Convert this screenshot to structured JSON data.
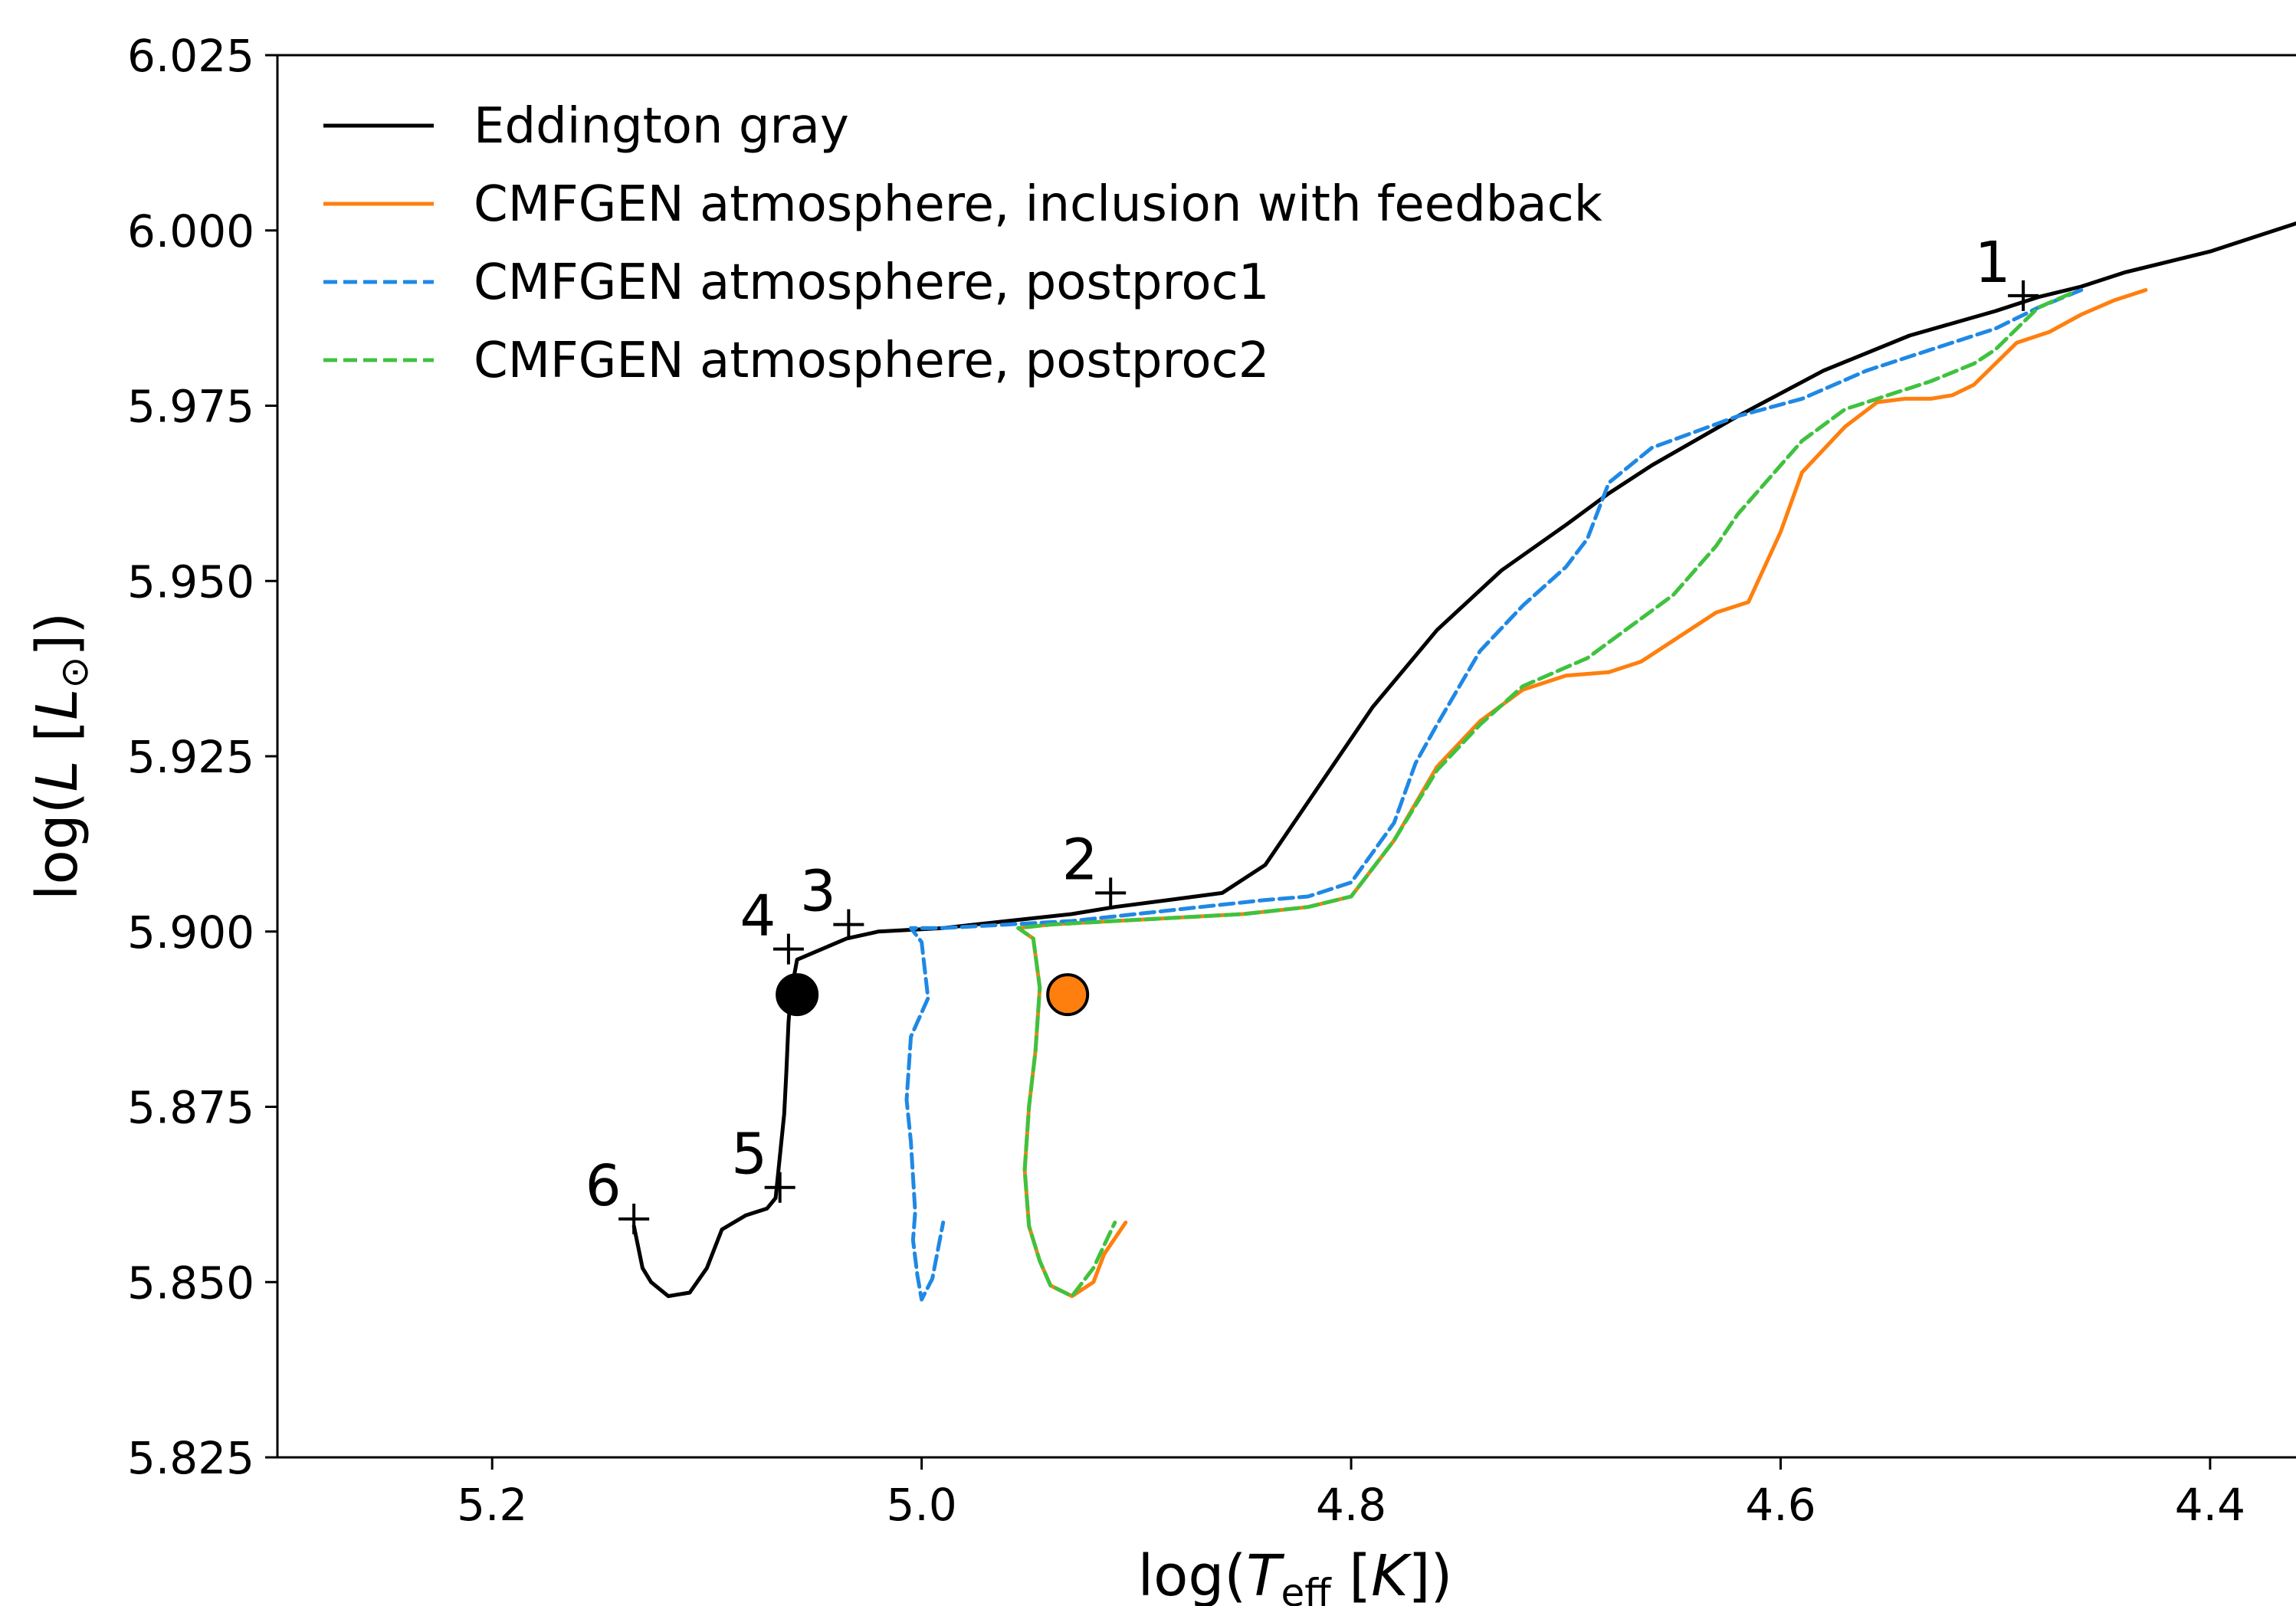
{
  "chart_data": {
    "type": "line",
    "xlabel": "log(T_eff [K])",
    "ylabel": "log(L [L_⊙])",
    "xlim": [
      5.3,
      4.36
    ],
    "ylim": [
      5.825,
      6.025
    ],
    "x_ticks": [
      "5.2",
      "5.0",
      "4.8",
      "4.6",
      "4.4"
    ],
    "x_tick_values": [
      5.2,
      5.0,
      4.8,
      4.6,
      4.4
    ],
    "y_ticks": [
      "5.825",
      "5.850",
      "5.875",
      "5.900",
      "5.925",
      "5.950",
      "5.975",
      "6.000",
      "6.025"
    ],
    "y_tick_values": [
      5.825,
      5.85,
      5.875,
      5.9,
      5.925,
      5.95,
      5.975,
      6.0,
      6.025
    ],
    "grid": false,
    "legend_position": "top-left",
    "series": [
      {
        "name": "Eddington gray",
        "color": "#000000",
        "dash": "solid",
        "x": [
          4.36,
          4.38,
          4.4,
          4.42,
          4.44,
          4.46,
          4.48,
          4.5,
          4.54,
          4.58,
          4.62,
          4.66,
          4.68,
          4.7,
          4.73,
          4.76,
          4.79,
          4.82,
          4.84,
          4.86,
          4.885,
          4.91,
          4.93,
          4.96,
          4.99,
          5.02,
          5.035,
          5.058,
          5.061,
          5.062,
          5.063,
          5.064,
          5.066,
          5.068,
          5.072,
          5.082,
          5.093,
          5.1,
          5.108,
          5.118,
          5.126,
          5.13,
          5.132,
          5.134
        ],
        "y": [
          6.001,
          5.999,
          5.997,
          5.9955,
          5.994,
          5.992,
          5.9905,
          5.9885,
          5.985,
          5.98,
          5.9735,
          5.9665,
          5.9625,
          5.958,
          5.9515,
          5.943,
          5.932,
          5.9185,
          5.9095,
          5.9055,
          5.9045,
          5.9035,
          5.9025,
          5.9015,
          5.9005,
          5.9,
          5.899,
          5.896,
          5.891,
          5.887,
          5.88,
          5.874,
          5.868,
          5.862,
          5.8605,
          5.8595,
          5.8575,
          5.852,
          5.8485,
          5.848,
          5.85,
          5.852,
          5.855,
          5.858
        ]
      },
      {
        "name": "CMFGEN atmosphere, inclusion with feedback",
        "color": "#ff7f0e",
        "dash": "solid",
        "x": [
          4.43,
          4.445,
          4.46,
          4.475,
          4.49,
          4.5,
          4.51,
          4.52,
          4.53,
          4.542,
          4.555,
          4.57,
          4.59,
          4.6,
          4.615,
          4.63,
          4.645,
          4.665,
          4.68,
          4.7,
          4.72,
          4.74,
          4.76,
          4.78,
          4.8,
          4.82,
          4.85,
          4.88,
          4.91,
          4.94,
          4.955,
          4.948,
          4.945,
          4.947,
          4.95,
          4.952,
          4.95,
          4.945,
          4.94,
          4.93,
          4.92,
          4.915,
          4.905
        ],
        "y": [
          5.9915,
          5.99,
          5.988,
          5.9855,
          5.984,
          5.981,
          5.978,
          5.9765,
          5.976,
          5.976,
          5.9755,
          5.972,
          5.9655,
          5.957,
          5.947,
          5.9455,
          5.9425,
          5.9385,
          5.937,
          5.9365,
          5.9345,
          5.93,
          5.9235,
          5.913,
          5.905,
          5.9035,
          5.9025,
          5.902,
          5.9015,
          5.901,
          5.9005,
          5.899,
          5.892,
          5.883,
          5.875,
          5.866,
          5.858,
          5.853,
          5.8495,
          5.848,
          5.85,
          5.854,
          5.8585
        ]
      },
      {
        "name": "CMFGEN atmosphere, postproc1",
        "color": "#1f88e5",
        "dash": "dashed",
        "x": [
          4.46,
          4.48,
          4.5,
          4.53,
          4.56,
          4.59,
          4.62,
          4.66,
          4.68,
          4.69,
          4.7,
          4.72,
          4.74,
          4.76,
          4.77,
          4.78,
          4.8,
          4.82,
          4.84,
          4.87,
          4.9,
          4.93,
          4.96,
          4.99,
          5.005,
          5.0,
          4.997,
          5.005,
          5.007,
          5.005,
          5.004,
          5.003,
          5.004,
          5.002,
          5.0,
          4.995,
          4.99
        ],
        "y": [
          5.9915,
          5.989,
          5.986,
          5.983,
          5.98,
          5.976,
          5.9735,
          5.969,
          5.964,
          5.956,
          5.952,
          5.9465,
          5.94,
          5.9295,
          5.924,
          5.9155,
          5.907,
          5.905,
          5.9045,
          5.9035,
          5.9025,
          5.9015,
          5.901,
          5.9005,
          5.9005,
          5.8985,
          5.8905,
          5.885,
          5.876,
          5.87,
          5.865,
          5.86,
          5.856,
          5.851,
          5.8475,
          5.8505,
          5.8585
        ]
      },
      {
        "name": "CMFGEN atmosphere, postproc2",
        "color": "#3fc23f",
        "dash": "dashed",
        "x": [
          4.465,
          4.48,
          4.49,
          4.5,
          4.51,
          4.53,
          4.55,
          4.57,
          4.59,
          4.6,
          4.62,
          4.63,
          4.65,
          4.67,
          4.69,
          4.72,
          4.74,
          4.76,
          4.78,
          4.8,
          4.82,
          4.85,
          4.88,
          4.91,
          4.94,
          4.955,
          4.948,
          4.945,
          4.947,
          4.95,
          4.952,
          4.95,
          4.945,
          4.94,
          4.93,
          4.92,
          4.91
        ],
        "y": [
          5.991,
          5.989,
          5.986,
          5.983,
          5.981,
          5.9785,
          5.9765,
          5.9745,
          5.97,
          5.9665,
          5.9595,
          5.955,
          5.948,
          5.9435,
          5.939,
          5.935,
          5.9295,
          5.923,
          5.913,
          5.905,
          5.9035,
          5.9025,
          5.902,
          5.9015,
          5.901,
          5.9005,
          5.899,
          5.892,
          5.883,
          5.875,
          5.866,
          5.858,
          5.853,
          5.8495,
          5.848,
          5.852,
          5.8585
        ]
      }
    ],
    "markers": [
      {
        "label": "1",
        "x": 4.487,
        "y": 5.9907
      },
      {
        "label": "2",
        "x": 4.912,
        "y": 5.9055
      },
      {
        "label": "3",
        "x": 5.034,
        "y": 5.901
      },
      {
        "label": "4",
        "x": 5.062,
        "y": 5.8975
      },
      {
        "label": "5",
        "x": 5.066,
        "y": 5.8635
      },
      {
        "label": "6",
        "x": 5.134,
        "y": 5.859
      }
    ],
    "points": [
      {
        "x": 5.058,
        "y": 5.891,
        "color": "#000000"
      },
      {
        "x": 4.932,
        "y": 5.891,
        "color": "#ff7f0e"
      }
    ]
  }
}
